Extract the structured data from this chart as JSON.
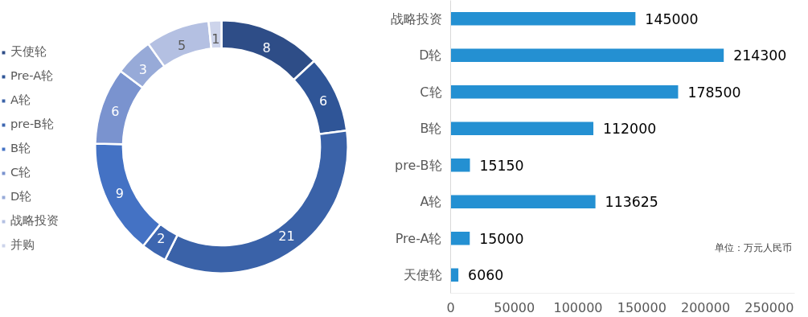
{
  "chart_data": [
    {
      "type": "donut",
      "categories": [
        "天使轮",
        "Pre-A轮",
        "A轮",
        "pre-B轮",
        "B轮",
        "C轮",
        "D轮",
        "战略投资",
        "并购"
      ],
      "values": [
        8,
        6,
        21,
        2,
        9,
        6,
        3,
        5,
        1
      ],
      "colors": [
        "#2e4d87",
        "#2f5597",
        "#3a62a8",
        "#3d66b0",
        "#4472c4",
        "#7a93cf",
        "#97aad8",
        "#b4c0e2",
        "#cdd4eb"
      ],
      "data_labels": true,
      "legend": "left"
    },
    {
      "type": "bar",
      "orientation": "horizontal",
      "categories": [
        "战略投资",
        "D轮",
        "C轮",
        "B轮",
        "pre-B轮",
        "A轮",
        "Pre-A轮",
        "天使轮"
      ],
      "values": [
        145000,
        214300,
        178500,
        112000,
        15150,
        113625,
        15000,
        6060
      ],
      "color": "#2490d2",
      "xlim": [
        0,
        270000
      ],
      "xticks": [
        0,
        50000,
        100000,
        150000,
        200000,
        250000
      ],
      "data_labels": true,
      "grid": false,
      "annotations": [
        "单位：万元人民币"
      ]
    }
  ]
}
